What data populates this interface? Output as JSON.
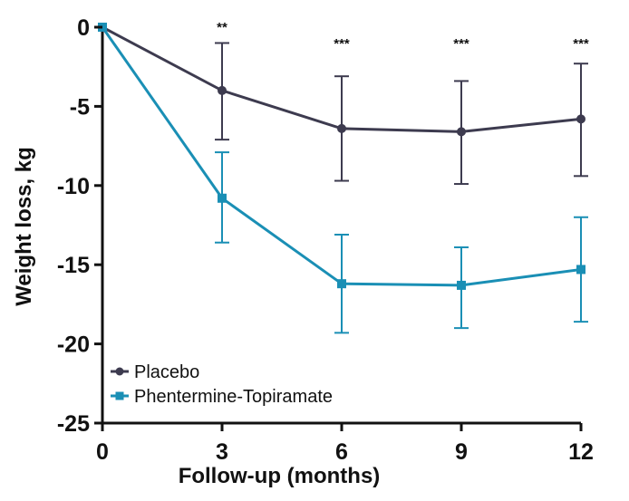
{
  "chart_data": {
    "type": "line",
    "title": "",
    "xlabel": "Follow-up (months)",
    "ylabel": "Weight loss, kg",
    "x": [
      0,
      3,
      6,
      9,
      12
    ],
    "x_ticks": [
      "0",
      "3",
      "6",
      "9",
      "12"
    ],
    "y_ticks": [
      "0",
      "-5",
      "-10",
      "-15",
      "-20",
      "-25"
    ],
    "xlim": [
      0,
      12
    ],
    "ylim": [
      -25,
      0
    ],
    "grid": false,
    "legend_position": "bottom-left",
    "series": [
      {
        "name": "Placebo",
        "color": "#3d3b4f",
        "marker": "circle",
        "values": [
          0,
          -4.0,
          -6.4,
          -6.6,
          -5.8
        ],
        "error": [
          [
            0,
            0
          ],
          [
            3.1,
            3.0
          ],
          [
            3.3,
            3.3
          ],
          [
            3.3,
            3.2
          ],
          [
            3.6,
            3.5
          ]
        ]
      },
      {
        "name": "Phentermine-Topiramate",
        "color": "#1a8fb5",
        "marker": "square",
        "values": [
          0,
          -10.8,
          -16.2,
          -16.3,
          -15.3
        ],
        "error": [
          [
            0,
            0
          ],
          [
            2.8,
            2.9
          ],
          [
            3.1,
            3.1
          ],
          [
            2.7,
            2.4
          ],
          [
            3.3,
            3.3
          ]
        ]
      }
    ],
    "annotations": [
      {
        "x": 3,
        "text": "**"
      },
      {
        "x": 6,
        "text": "***"
      },
      {
        "x": 9,
        "text": "***"
      },
      {
        "x": 12,
        "text": "***"
      }
    ]
  }
}
